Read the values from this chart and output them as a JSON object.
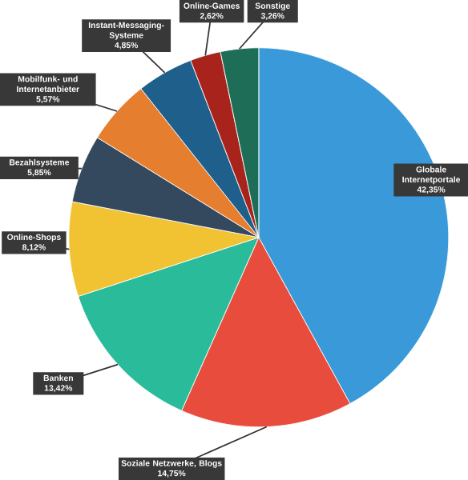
{
  "chart_data": {
    "type": "pie",
    "categories": [
      "Globale Internetportale",
      "Soziale Netzwerke, Blogs",
      "Banken",
      "Online-Shops",
      "Bezahlsysteme",
      "Mobilfunk- und Internetanbieter",
      "Instant-Messaging-Systeme",
      "Online-Games",
      "Sonstige"
    ],
    "values": [
      42.35,
      14.75,
      13.42,
      8.12,
      5.85,
      5.57,
      4.85,
      2.62,
      3.26
    ],
    "value_labels": [
      "42,35%",
      "14,75%",
      "13,42%",
      "8,12%",
      "5,85%",
      "5,57%",
      "4,85%",
      "2,62%",
      "3,26%"
    ],
    "colors": [
      "#3a9ad9",
      "#e74c3c",
      "#2abb9b",
      "#f1c232",
      "#34495e",
      "#e67e30",
      "#1f5f8b",
      "#a8231c",
      "#1e6e57"
    ]
  }
}
